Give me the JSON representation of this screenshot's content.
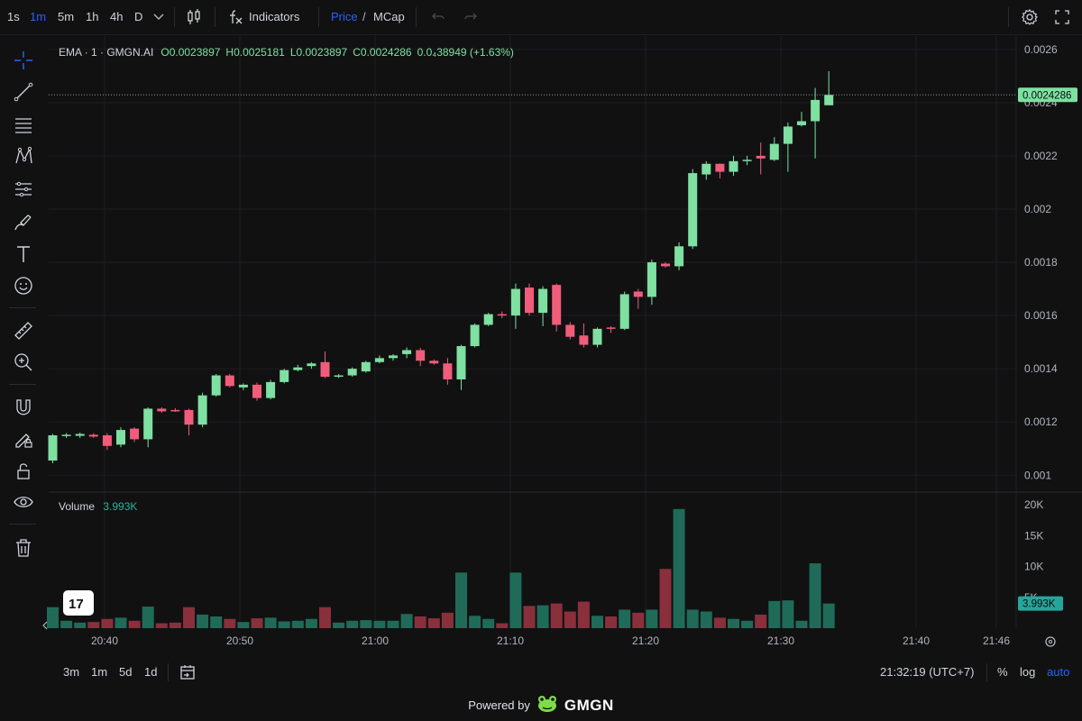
{
  "toolbar": {
    "timeframes": [
      "1s",
      "1m",
      "5m",
      "1h",
      "4h",
      "D"
    ],
    "active_timeframe": "1m",
    "indicators_label": "Indicators",
    "price_label": "Price",
    "slash": "/",
    "mcap_label": "MCap"
  },
  "legend": {
    "symbol": "EMA · 1 · GMGN.AI",
    "open": "O0.0023897",
    "high": "H0.0025181",
    "low": "L0.0023897",
    "close": "C0.0024286",
    "change": "0.0₄38949 (+1.63%)"
  },
  "volume_legend": {
    "label": "Volume",
    "value": "3.993K"
  },
  "current_price_label": "0.0024286",
  "current_volume_label": "3.993K",
  "time_axis": [
    "20:40",
    "20:50",
    "21:00",
    "21:10",
    "21:20",
    "21:30",
    "21:40",
    "21:46"
  ],
  "bottom": {
    "ranges": [
      "3m",
      "1m",
      "5d",
      "1d"
    ],
    "clock": "21:32:19 (UTC+7)",
    "percent": "%",
    "log": "log",
    "auto": "auto"
  },
  "powered_by": "Powered by",
  "brand": "GMGN",
  "colors": {
    "up": "#7ee0a1",
    "down": "#f05d7a",
    "vol_up": "#1f6b58",
    "vol_down": "#8a2f3c",
    "accent": "#2962ff",
    "price_tag": "#7ee0a1"
  },
  "chart_data": {
    "type": "candlestick",
    "price_axis": [
      "0.0026",
      "0.0024",
      "0.0022",
      "0.002",
      "0.0018",
      "0.0016",
      "0.0014",
      "0.0012",
      "0.001"
    ],
    "volume_axis": [
      "20K",
      "15K",
      "10K",
      "5K"
    ],
    "ylim": [
      0.00094,
      0.00265
    ],
    "vol_ylim": [
      0,
      20000
    ],
    "candles": [
      {
        "o": 0.001055,
        "h": 0.001155,
        "l": 0.001045,
        "c": 0.00115,
        "v": 3400
      },
      {
        "o": 0.00115,
        "h": 0.001158,
        "l": 0.00114,
        "c": 0.001152,
        "v": 1200
      },
      {
        "o": 0.001148,
        "h": 0.00116,
        "l": 0.00114,
        "c": 0.001155,
        "v": 900
      },
      {
        "o": 0.001152,
        "h": 0.001158,
        "l": 0.00114,
        "c": 0.001145,
        "v": 1000
      },
      {
        "o": 0.00115,
        "h": 0.001158,
        "l": 0.001095,
        "c": 0.00111,
        "v": 1500
      },
      {
        "o": 0.001115,
        "h": 0.00118,
        "l": 0.001105,
        "c": 0.00117,
        "v": 1700
      },
      {
        "o": 0.001175,
        "h": 0.00118,
        "l": 0.001125,
        "c": 0.001135,
        "v": 1200
      },
      {
        "o": 0.001135,
        "h": 0.001255,
        "l": 0.001105,
        "c": 0.00125,
        "v": 3500
      },
      {
        "o": 0.00125,
        "h": 0.001255,
        "l": 0.001235,
        "c": 0.00124,
        "v": 800
      },
      {
        "o": 0.001245,
        "h": 0.001252,
        "l": 0.001238,
        "c": 0.00124,
        "v": 900
      },
      {
        "o": 0.001245,
        "h": 0.00125,
        "l": 0.00115,
        "c": 0.00119,
        "v": 3400
      },
      {
        "o": 0.00119,
        "h": 0.00131,
        "l": 0.00118,
        "c": 0.0013,
        "v": 2200
      },
      {
        "o": 0.0013,
        "h": 0.00138,
        "l": 0.001295,
        "c": 0.001375,
        "v": 1900
      },
      {
        "o": 0.001375,
        "h": 0.00138,
        "l": 0.00133,
        "c": 0.001335,
        "v": 1500
      },
      {
        "o": 0.00133,
        "h": 0.001345,
        "l": 0.00132,
        "c": 0.00134,
        "v": 1000
      },
      {
        "o": 0.00134,
        "h": 0.001348,
        "l": 0.00128,
        "c": 0.00129,
        "v": 1600
      },
      {
        "o": 0.00129,
        "h": 0.001358,
        "l": 0.001285,
        "c": 0.00135,
        "v": 1700
      },
      {
        "o": 0.00135,
        "h": 0.0014,
        "l": 0.001345,
        "c": 0.001395,
        "v": 1100
      },
      {
        "o": 0.001395,
        "h": 0.001415,
        "l": 0.00139,
        "c": 0.001405,
        "v": 1200
      },
      {
        "o": 0.00141,
        "h": 0.001425,
        "l": 0.0014,
        "c": 0.00142,
        "v": 1500
      },
      {
        "o": 0.001425,
        "h": 0.001465,
        "l": 0.001365,
        "c": 0.00137,
        "v": 3400
      },
      {
        "o": 0.00137,
        "h": 0.00138,
        "l": 0.001365,
        "c": 0.001375,
        "v": 900
      },
      {
        "o": 0.001375,
        "h": 0.001405,
        "l": 0.00137,
        "c": 0.0014,
        "v": 1200
      },
      {
        "o": 0.00139,
        "h": 0.00143,
        "l": 0.001385,
        "c": 0.001425,
        "v": 1300
      },
      {
        "o": 0.001425,
        "h": 0.00145,
        "l": 0.00142,
        "c": 0.00144,
        "v": 1200
      },
      {
        "o": 0.00144,
        "h": 0.001455,
        "l": 0.00143,
        "c": 0.00145,
        "v": 1200
      },
      {
        "o": 0.001455,
        "h": 0.00148,
        "l": 0.00144,
        "c": 0.00147,
        "v": 2300
      },
      {
        "o": 0.00147,
        "h": 0.001478,
        "l": 0.00141,
        "c": 0.00143,
        "v": 1900
      },
      {
        "o": 0.00143,
        "h": 0.001435,
        "l": 0.001415,
        "c": 0.00142,
        "v": 1600
      },
      {
        "o": 0.00142,
        "h": 0.00144,
        "l": 0.00134,
        "c": 0.00136,
        "v": 2500
      },
      {
        "o": 0.00136,
        "h": 0.00149,
        "l": 0.00132,
        "c": 0.001485,
        "v": 9000
      },
      {
        "o": 0.001485,
        "h": 0.00157,
        "l": 0.00148,
        "c": 0.001565,
        "v": 2000
      },
      {
        "o": 0.001565,
        "h": 0.00161,
        "l": 0.00156,
        "c": 0.001605,
        "v": 1500
      },
      {
        "o": 0.001605,
        "h": 0.001615,
        "l": 0.00159,
        "c": 0.0016,
        "v": 800
      },
      {
        "o": 0.0016,
        "h": 0.00172,
        "l": 0.00155,
        "c": 0.0017,
        "v": 9000
      },
      {
        "o": 0.001705,
        "h": 0.00172,
        "l": 0.0016,
        "c": 0.00161,
        "v": 3600
      },
      {
        "o": 0.00161,
        "h": 0.00171,
        "l": 0.00156,
        "c": 0.0017,
        "v": 3700
      },
      {
        "o": 0.001715,
        "h": 0.00172,
        "l": 0.00154,
        "c": 0.001565,
        "v": 4000
      },
      {
        "o": 0.001565,
        "h": 0.001575,
        "l": 0.00151,
        "c": 0.00152,
        "v": 2700
      },
      {
        "o": 0.001525,
        "h": 0.00157,
        "l": 0.00148,
        "c": 0.00149,
        "v": 4300
      },
      {
        "o": 0.00149,
        "h": 0.001555,
        "l": 0.00148,
        "c": 0.00155,
        "v": 2000
      },
      {
        "o": 0.001555,
        "h": 0.00156,
        "l": 0.001535,
        "c": 0.00155,
        "v": 1900
      },
      {
        "o": 0.00155,
        "h": 0.00169,
        "l": 0.001545,
        "c": 0.00168,
        "v": 3000
      },
      {
        "o": 0.00169,
        "h": 0.0017,
        "l": 0.001625,
        "c": 0.00167,
        "v": 2500
      },
      {
        "o": 0.00167,
        "h": 0.00181,
        "l": 0.00164,
        "c": 0.0018,
        "v": 3000
      },
      {
        "o": 0.001795,
        "h": 0.0018,
        "l": 0.00178,
        "c": 0.001785,
        "v": 9600
      },
      {
        "o": 0.001785,
        "h": 0.001875,
        "l": 0.00177,
        "c": 0.00186,
        "v": 19300
      },
      {
        "o": 0.00186,
        "h": 0.00215,
        "l": 0.00185,
        "c": 0.002135,
        "v": 3000
      },
      {
        "o": 0.00213,
        "h": 0.00218,
        "l": 0.00211,
        "c": 0.00217,
        "v": 2700
      },
      {
        "o": 0.00217,
        "h": 0.002172,
        "l": 0.002115,
        "c": 0.00214,
        "v": 1700
      },
      {
        "o": 0.00214,
        "h": 0.0022,
        "l": 0.002125,
        "c": 0.00218,
        "v": 1500
      },
      {
        "o": 0.00218,
        "h": 0.0022,
        "l": 0.002165,
        "c": 0.002185,
        "v": 1200
      },
      {
        "o": 0.0022,
        "h": 0.00225,
        "l": 0.00213,
        "c": 0.00219,
        "v": 2200
      },
      {
        "o": 0.002185,
        "h": 0.00227,
        "l": 0.00218,
        "c": 0.002245,
        "v": 4400
      },
      {
        "o": 0.002245,
        "h": 0.002325,
        "l": 0.00214,
        "c": 0.00231,
        "v": 4500
      },
      {
        "o": 0.002315,
        "h": 0.002365,
        "l": 0.00231,
        "c": 0.00233,
        "v": 1200
      },
      {
        "o": 0.00233,
        "h": 0.002455,
        "l": 0.00219,
        "c": 0.00241,
        "v": 10500
      },
      {
        "o": 0.00239,
        "h": 0.002518,
        "l": 0.00239,
        "c": 0.002429,
        "v": 3993
      }
    ]
  }
}
